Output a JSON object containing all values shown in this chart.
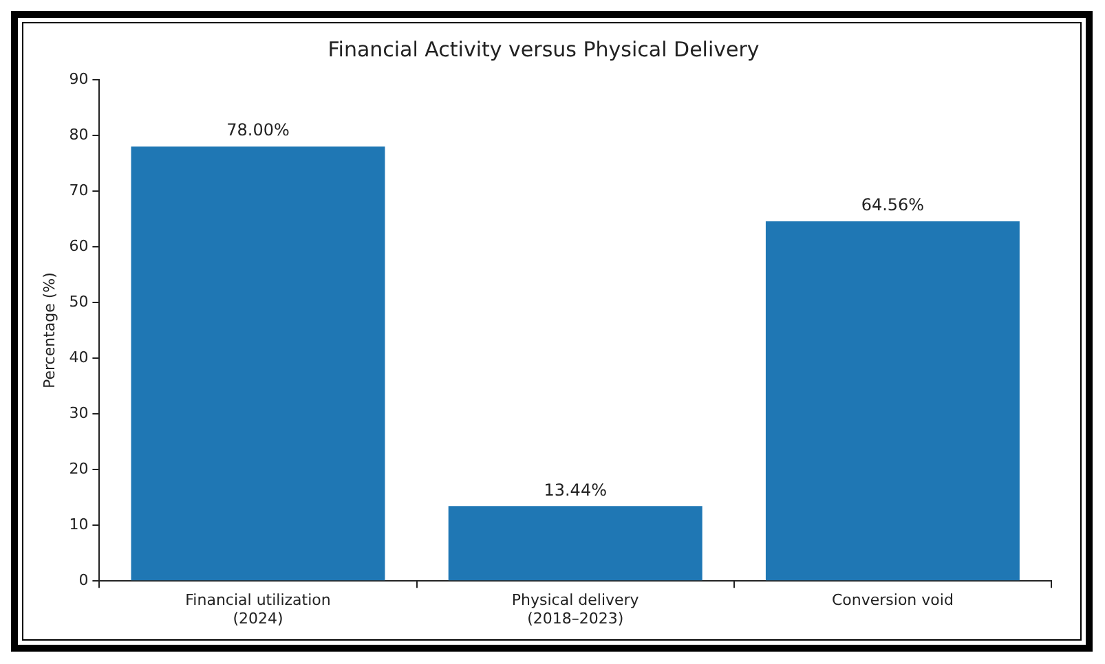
{
  "chart_data": {
    "type": "bar",
    "title": "Financial Activity versus Physical Delivery",
    "ylabel": "Percentage (%)",
    "categories": [
      "Financial utilization\n(2024)",
      "Physical delivery\n(2018–2023)",
      "Conversion void"
    ],
    "values": [
      78.0,
      13.44,
      64.56
    ],
    "color": "#1f77b4",
    "value_labels": [
      "78.00%",
      "13.44%",
      "64.56%"
    ],
    "ylim": [
      0,
      90
    ],
    "yticks": [
      0,
      10,
      20,
      30,
      40,
      50,
      60,
      70,
      80,
      90
    ],
    "grid": false,
    "legend": false
  }
}
